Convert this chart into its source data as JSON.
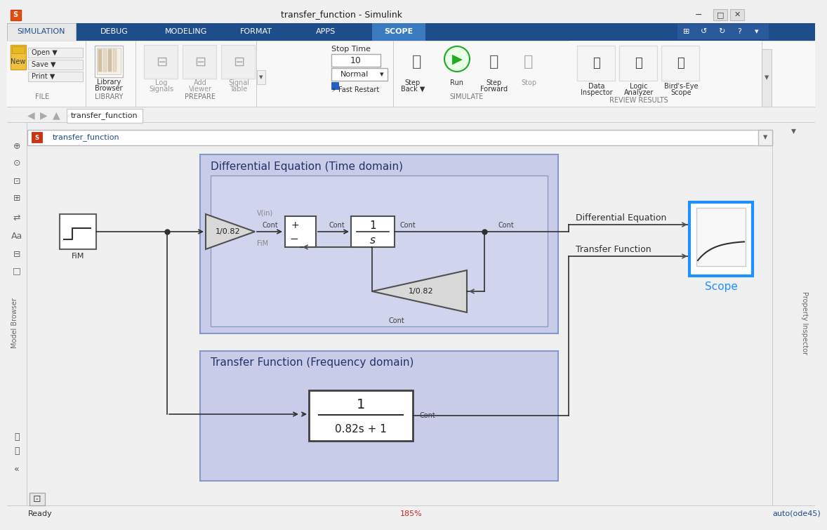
{
  "title": "transfer_function - Simulink",
  "titlebar_bg": "#f0f0f0",
  "menu_bg": "#1e4d8c",
  "simulation_tab_bg": "#e8e8e8",
  "scope_tab_bg": "#3a7abf",
  "toolbar_bg": "#ffffff",
  "canvas_bg": "#f0f0f0",
  "block_region_bg": "#c8cce8",
  "block_region_border": "#8890b8",
  "inner_region_bg": "#d4d8f0",
  "block_white": "#ffffff",
  "block_border": "#404040",
  "gain_bg": "#d8d8d8",
  "scope_border": "#1e90ff",
  "scope_label_color": "#1e90ff",
  "wire_color": "#303030",
  "label_color": "#404040",
  "gray_label": "#888888",
  "status_pct": "185%",
  "status_solver": "auto(ode45)",
  "status_pct_color": "#cc2222",
  "status_solver_color": "#1e4d8c"
}
